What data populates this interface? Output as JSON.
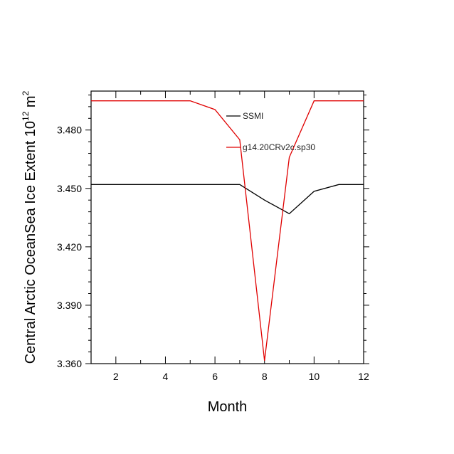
{
  "chart_data": {
    "type": "line",
    "xlabel": "Month",
    "ylabel": "Central Arctic OceanSea Ice Extent 10",
    "ylabel_exponent": "12",
    "ylabel_unit": " m",
    "ylabel_unit_exponent": "2",
    "xlim": [
      1,
      12
    ],
    "ylim": [
      3.36,
      3.5
    ],
    "x_ticks": [
      2,
      4,
      6,
      8,
      10,
      12
    ],
    "x_tick_labels": [
      "2",
      "4",
      "6",
      "8",
      "10",
      "12"
    ],
    "y_ticks": [
      3.36,
      3.39,
      3.42,
      3.45,
      3.48
    ],
    "y_tick_labels": [
      "3.360",
      "3.390",
      "3.420",
      "3.450",
      "3.480"
    ],
    "grid": false,
    "legend_position": "top-right",
    "x": [
      1,
      2,
      3,
      4,
      5,
      6,
      7,
      8,
      9,
      10,
      11,
      12
    ],
    "series": [
      {
        "name": "SSMI",
        "color": "#000000",
        "values": [
          3.452,
          3.452,
          3.452,
          3.452,
          3.452,
          3.452,
          3.452,
          3.444,
          3.437,
          3.4485,
          3.452,
          3.452
        ]
      },
      {
        "name": "g14.20CRv2c.sp30",
        "color": "#e00000",
        "values": [
          3.495,
          3.495,
          3.495,
          3.495,
          3.495,
          3.4905,
          3.475,
          3.3615,
          3.466,
          3.495,
          3.495,
          3.495
        ]
      }
    ]
  }
}
